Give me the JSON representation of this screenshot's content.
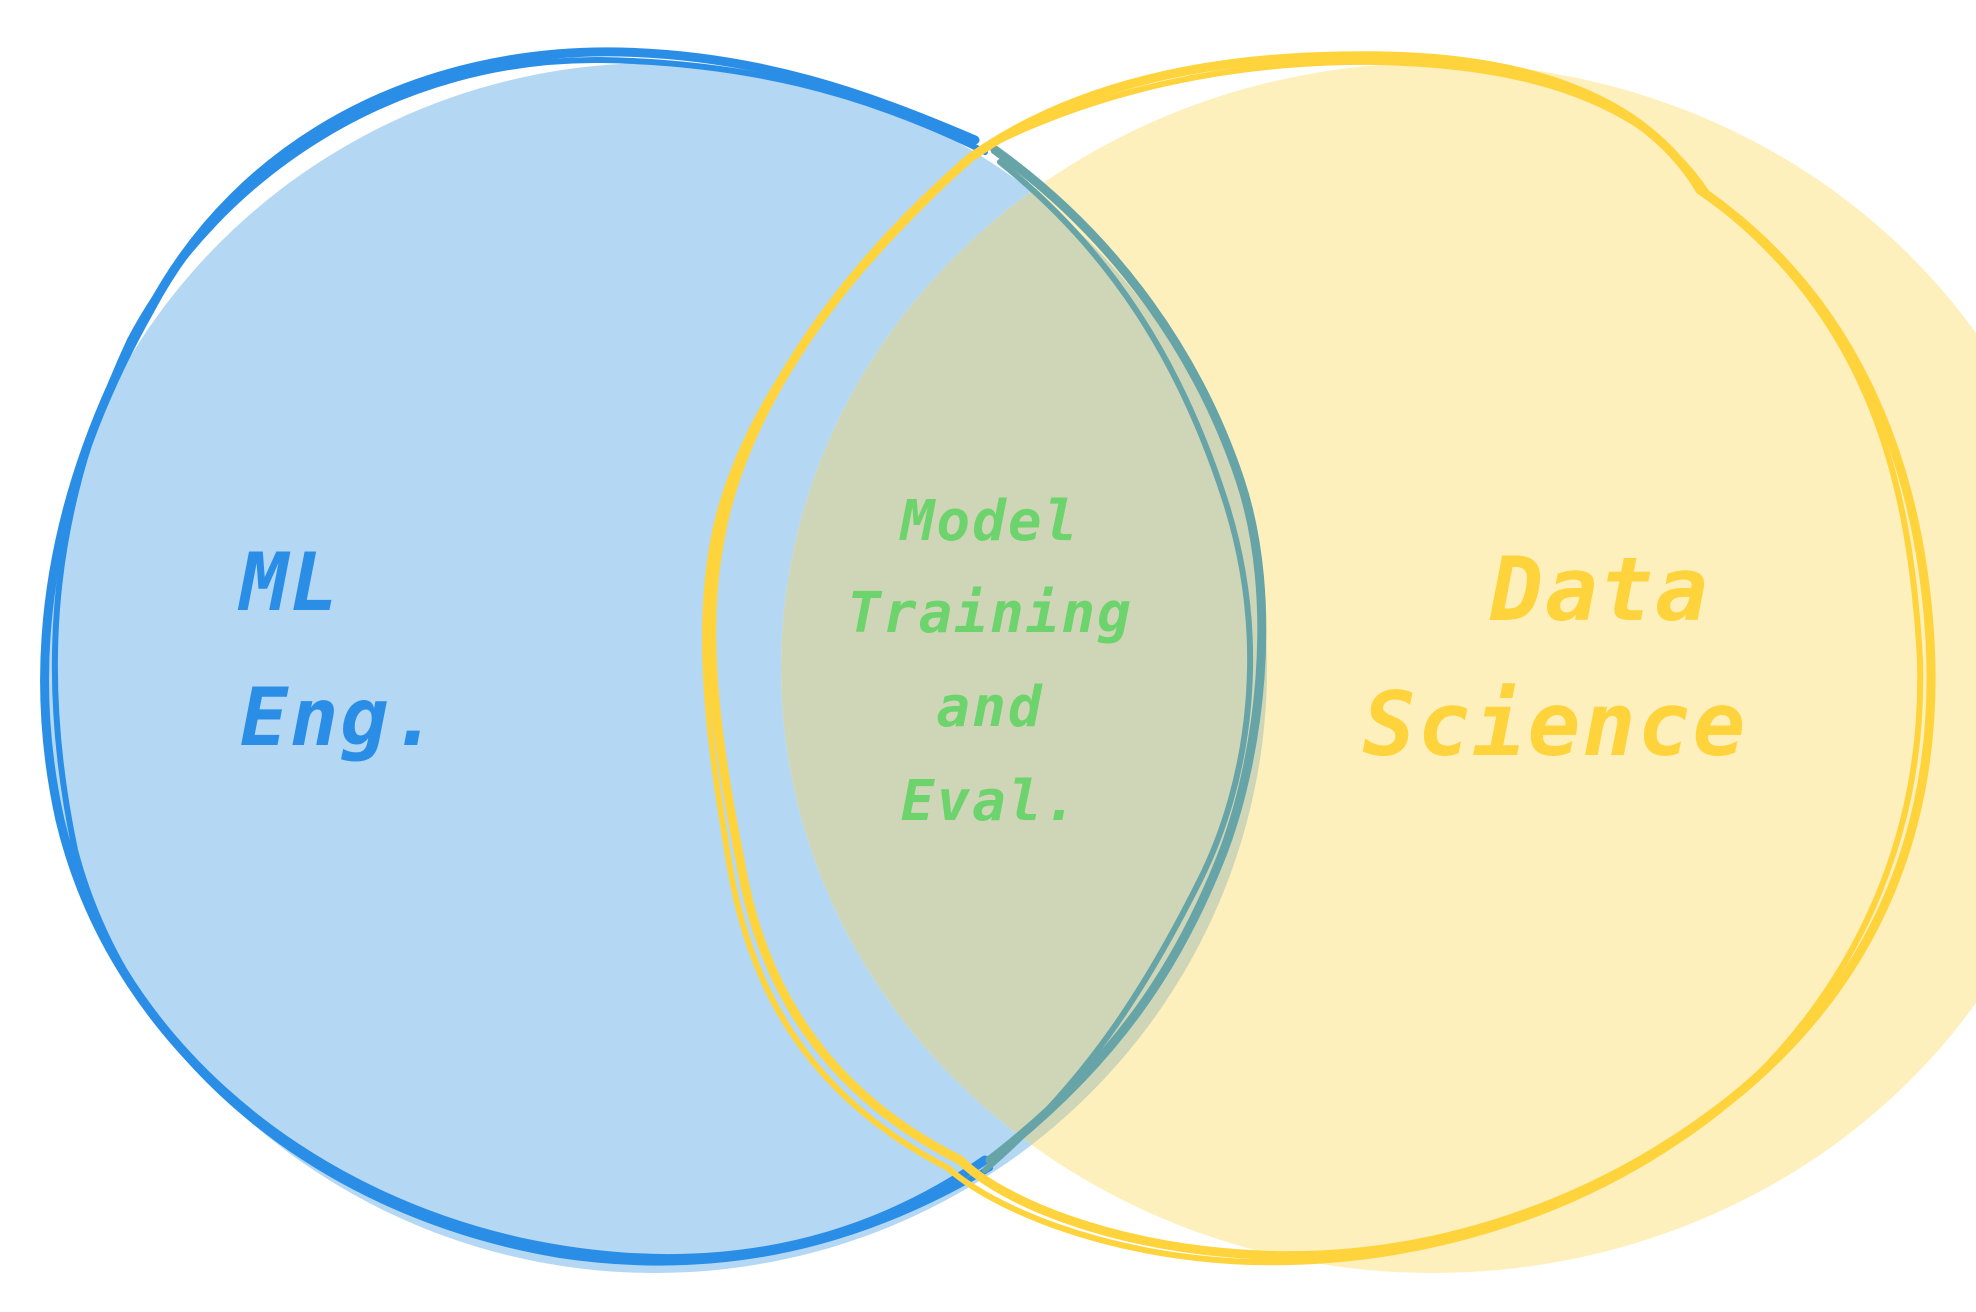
{
  "colors": {
    "left_fill": "#b4d8f4",
    "left_stroke": "#2b8ee6",
    "right_fill": "#fdf0bc",
    "right_stroke": "#fed33c",
    "overlap_fill": "#cfd6b7",
    "overlap_stroke": "#67a4a8",
    "left_text": "#2b8ee6",
    "right_text": "#fed33c",
    "overlap_text": "#6dd36d"
  },
  "sets": {
    "left": {
      "label_lines": [
        "ML",
        "Eng."
      ]
    },
    "right": {
      "label_lines": [
        "Data",
        "Science"
      ]
    },
    "overlap": {
      "label_lines": [
        "Model",
        "Training",
        "and",
        "Eval."
      ]
    }
  }
}
